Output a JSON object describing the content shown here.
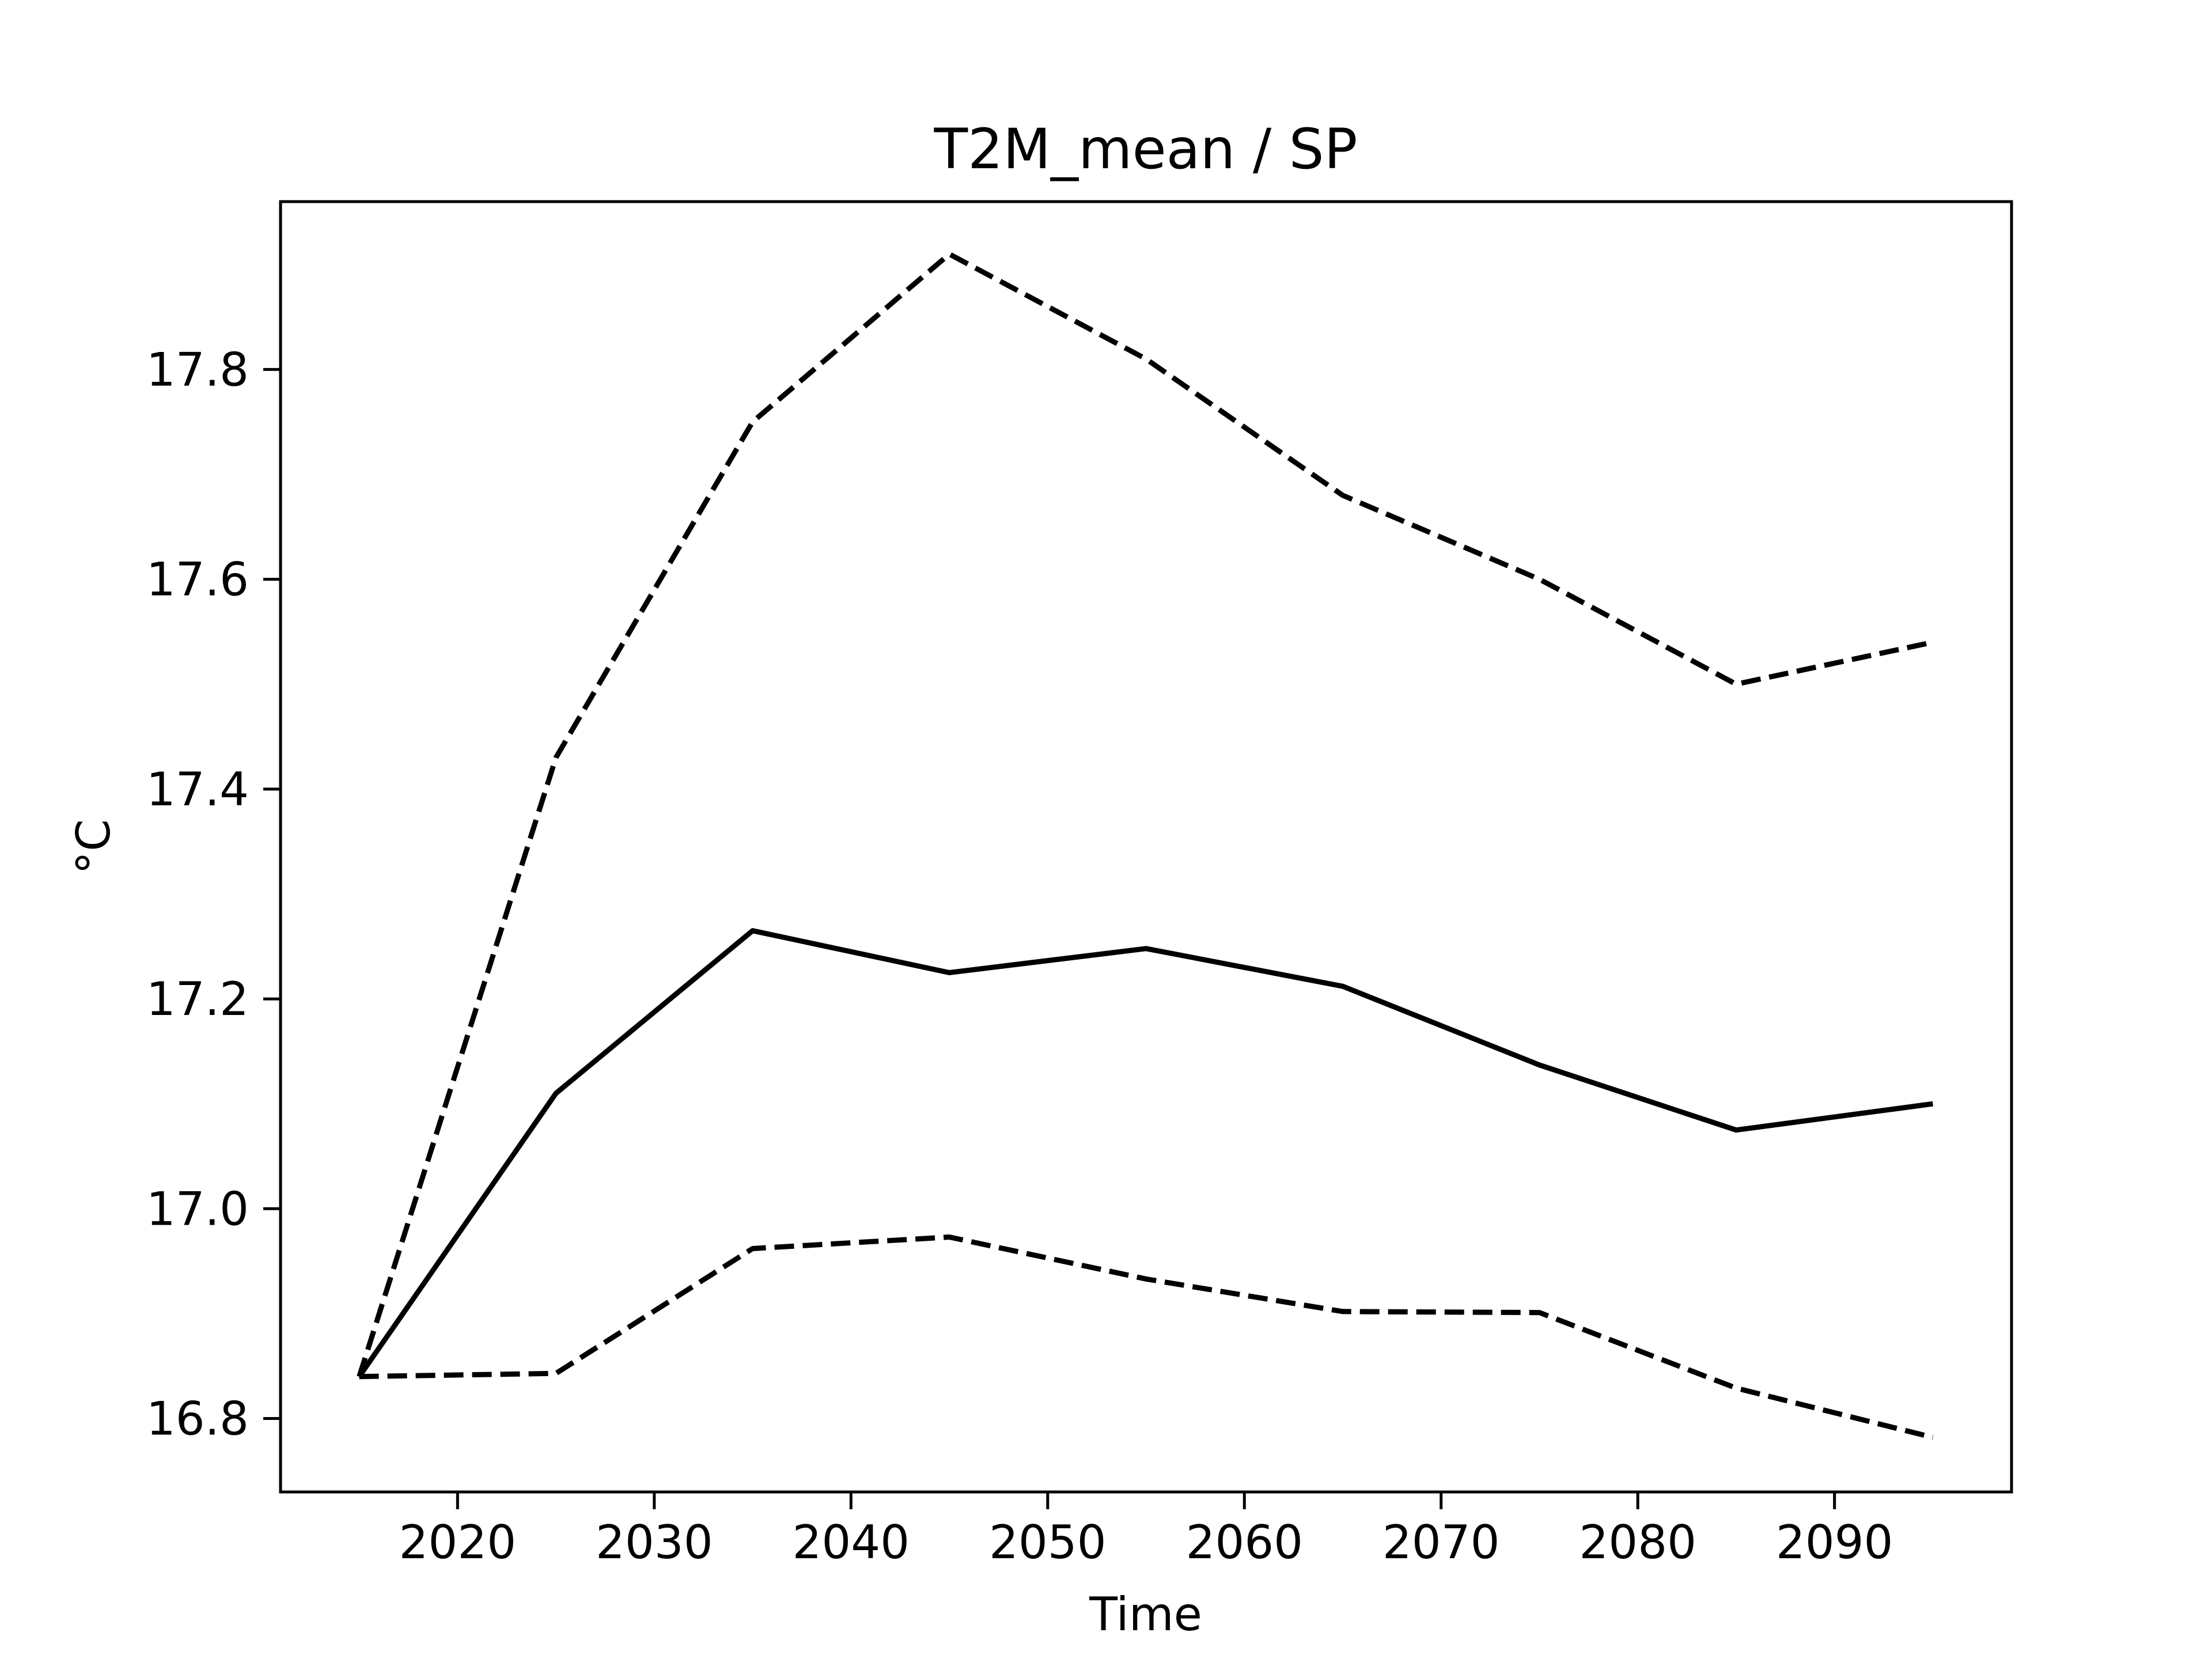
{
  "chart_data": {
    "type": "line",
    "title": "T2M_mean / SP",
    "xlabel": "Time",
    "ylabel": "°C",
    "xlim": [
      2011,
      2099
    ],
    "ylim": [
      16.73,
      17.96
    ],
    "xticks": [
      2020,
      2030,
      2040,
      2050,
      2060,
      2070,
      2080,
      2090
    ],
    "yticks": [
      16.8,
      17.0,
      17.2,
      17.4,
      17.6,
      17.8
    ],
    "ytick_labels": [
      "16.8",
      "17.0",
      "17.2",
      "17.4",
      "17.6",
      "17.8"
    ],
    "grid": false,
    "legend": "none",
    "x": [
      2015,
      2025,
      2035,
      2045,
      2055,
      2065,
      2075,
      2085,
      2095
    ],
    "series": [
      {
        "style": "solid",
        "color": "#000000",
        "values": [
          16.84,
          17.11,
          17.265,
          17.225,
          17.248,
          17.212,
          17.137,
          17.075,
          17.1
        ]
      },
      {
        "style": "dashed",
        "color": "#000000",
        "values": [
          16.84,
          17.43,
          17.75,
          17.91,
          17.81,
          17.68,
          17.6,
          17.5,
          17.54
        ]
      },
      {
        "style": "dashed",
        "color": "#000000",
        "values": [
          16.84,
          16.843,
          16.962,
          16.973,
          16.933,
          16.902,
          16.901,
          16.829,
          16.782
        ]
      }
    ]
  }
}
